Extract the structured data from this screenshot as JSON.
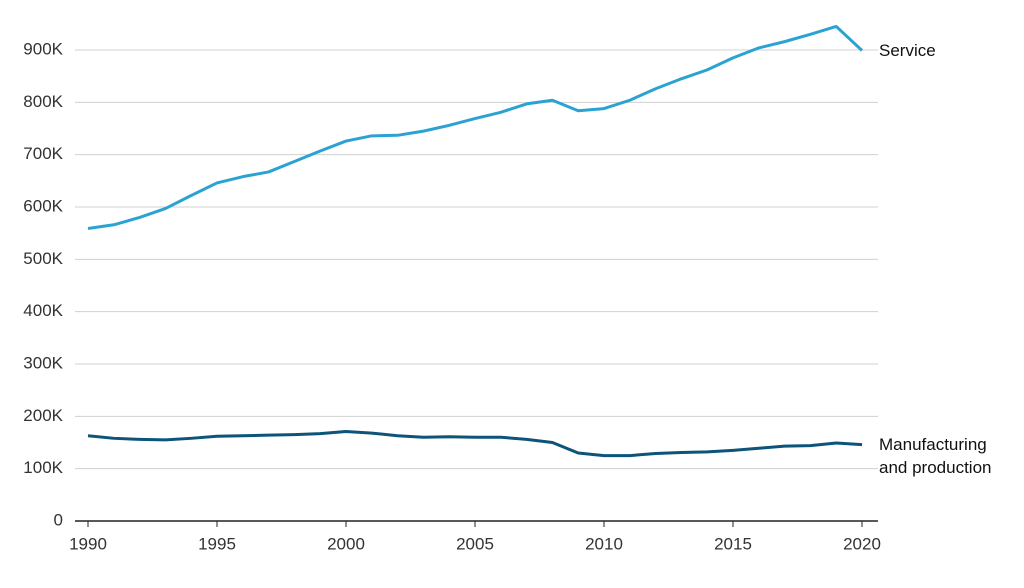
{
  "chart_data": {
    "type": "line",
    "x": [
      1990,
      1991,
      1992,
      1993,
      1994,
      1995,
      1996,
      1997,
      1998,
      1999,
      2000,
      2001,
      2002,
      2003,
      2004,
      2005,
      2006,
      2007,
      2008,
      2009,
      2010,
      2011,
      2012,
      2013,
      2014,
      2015,
      2016,
      2017,
      2018,
      2019,
      2020
    ],
    "series": [
      {
        "name": "Service",
        "color": "#2ba3d2",
        "values": [
          559000,
          566000,
          580000,
          597000,
          622000,
          646000,
          658000,
          667000,
          687000,
          707000,
          726000,
          736000,
          737000,
          745000,
          756000,
          769000,
          781000,
          797000,
          804000,
          784000,
          788000,
          804000,
          826000,
          845000,
          862000,
          885000,
          904000,
          916000,
          930000,
          945000,
          899000
        ]
      },
      {
        "name": "Manufacturing and production",
        "color": "#0c5479",
        "values": [
          163000,
          158000,
          156000,
          155000,
          158000,
          162000,
          163000,
          164000,
          165000,
          167000,
          171000,
          168000,
          163000,
          160000,
          161000,
          160000,
          160000,
          156000,
          150000,
          130000,
          125000,
          125000,
          129000,
          131000,
          132000,
          135000,
          139000,
          143000,
          144000,
          149000,
          146000
        ]
      }
    ],
    "xlim": [
      1990,
      2020
    ],
    "xticks": [
      1990,
      1995,
      2000,
      2005,
      2010,
      2015,
      2020
    ],
    "ylim": [
      0,
      900000
    ],
    "yticks": [
      0,
      {
        "value": 100000,
        "label": "100K"
      },
      {
        "value": 200000,
        "label": "200K"
      },
      {
        "value": 300000,
        "label": "300K"
      },
      {
        "value": 400000,
        "label": "400K"
      },
      {
        "value": 500000,
        "label": "500K"
      },
      {
        "value": 600000,
        "label": "600K"
      },
      {
        "value": 700000,
        "label": "700K"
      },
      {
        "value": 800000,
        "label": "800K"
      },
      {
        "value": 900000,
        "label": "900K"
      }
    ],
    "grid": true
  }
}
